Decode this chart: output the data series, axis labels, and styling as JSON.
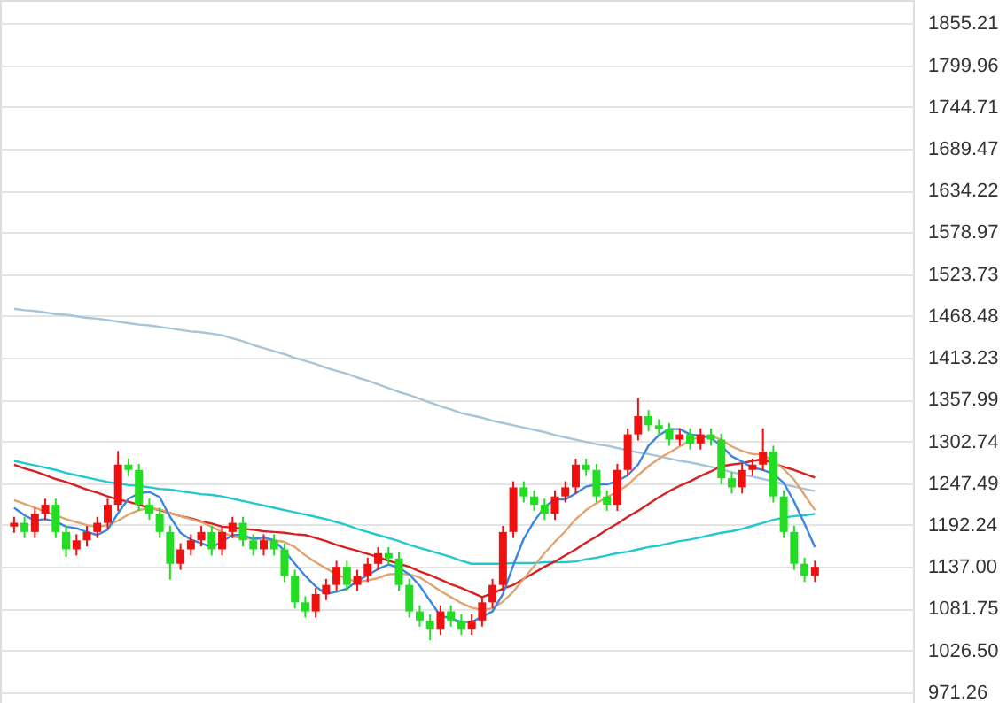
{
  "chart_data": {
    "type": "candlestick",
    "categories": [
      null,
      null,
      null,
      null,
      null,
      null,
      null,
      null,
      null,
      null,
      null,
      null,
      null,
      null,
      null,
      null,
      null,
      null,
      null,
      null,
      null,
      null,
      null,
      null,
      null,
      null,
      null,
      null,
      null,
      null,
      null,
      null,
      null,
      null,
      null,
      null,
      null,
      null,
      null,
      null,
      null,
      null,
      null,
      null,
      null,
      null,
      null,
      null,
      null,
      null,
      null,
      null,
      null,
      null,
      null,
      null,
      null,
      null,
      null,
      null,
      null,
      null,
      null,
      null,
      null,
      null,
      null,
      null,
      null,
      null,
      null,
      null,
      null,
      null,
      null,
      null,
      null,
      null
    ],
    "ohlc": [
      [
        1190,
        1203,
        1182,
        1195
      ],
      [
        1195,
        1203,
        1175,
        1183
      ],
      [
        1183,
        1215,
        1175,
        1207
      ],
      [
        1207,
        1227,
        1199,
        1219
      ],
      [
        1219,
        1227,
        1175,
        1183
      ],
      [
        1183,
        1191,
        1150,
        1160
      ],
      [
        1160,
        1180,
        1152,
        1172
      ],
      [
        1172,
        1191,
        1164,
        1183
      ],
      [
        1183,
        1203,
        1175,
        1195
      ],
      [
        1195,
        1227,
        1187,
        1219
      ],
      [
        1219,
        1290,
        1211,
        1272
      ],
      [
        1272,
        1280,
        1257,
        1265
      ],
      [
        1265,
        1273,
        1211,
        1219
      ],
      [
        1219,
        1227,
        1199,
        1207
      ],
      [
        1207,
        1215,
        1175,
        1183
      ],
      [
        1183,
        1191,
        1120,
        1141
      ],
      [
        1141,
        1168,
        1133,
        1160
      ],
      [
        1160,
        1180,
        1152,
        1172
      ],
      [
        1172,
        1191,
        1164,
        1183
      ],
      [
        1183,
        1191,
        1152,
        1160
      ],
      [
        1160,
        1191,
        1152,
        1183
      ],
      [
        1183,
        1203,
        1175,
        1195
      ],
      [
        1195,
        1203,
        1164,
        1172
      ],
      [
        1172,
        1180,
        1152,
        1160
      ],
      [
        1160,
        1180,
        1152,
        1172
      ],
      [
        1172,
        1180,
        1152,
        1160
      ],
      [
        1160,
        1168,
        1117,
        1125
      ],
      [
        1125,
        1133,
        1082,
        1090
      ],
      [
        1090,
        1098,
        1070,
        1078
      ],
      [
        1078,
        1109,
        1070,
        1101
      ],
      [
        1101,
        1121,
        1093,
        1113
      ],
      [
        1113,
        1145,
        1105,
        1137
      ],
      [
        1137,
        1145,
        1105,
        1113
      ],
      [
        1113,
        1133,
        1105,
        1125
      ],
      [
        1125,
        1149,
        1117,
        1141
      ],
      [
        1141,
        1163,
        1133,
        1155
      ],
      [
        1155,
        1163,
        1140,
        1148
      ],
      [
        1148,
        1156,
        1105,
        1113
      ],
      [
        1113,
        1121,
        1070,
        1078
      ],
      [
        1078,
        1086,
        1058,
        1066
      ],
      [
        1066,
        1074,
        1040,
        1055
      ],
      [
        1055,
        1086,
        1047,
        1078
      ],
      [
        1078,
        1086,
        1058,
        1066
      ],
      [
        1066,
        1074,
        1047,
        1055
      ],
      [
        1055,
        1074,
        1047,
        1066
      ],
      [
        1066,
        1098,
        1058,
        1090
      ],
      [
        1090,
        1121,
        1082,
        1113
      ],
      [
        1113,
        1191,
        1105,
        1183
      ],
      [
        1183,
        1250,
        1175,
        1242
      ],
      [
        1242,
        1250,
        1222,
        1230
      ],
      [
        1230,
        1238,
        1211,
        1219
      ],
      [
        1219,
        1227,
        1199,
        1207
      ],
      [
        1207,
        1238,
        1199,
        1230
      ],
      [
        1230,
        1250,
        1222,
        1242
      ],
      [
        1242,
        1280,
        1234,
        1272
      ],
      [
        1272,
        1280,
        1257,
        1265
      ],
      [
        1265,
        1273,
        1222,
        1230
      ],
      [
        1230,
        1238,
        1211,
        1219
      ],
      [
        1219,
        1273,
        1211,
        1265
      ],
      [
        1265,
        1320,
        1257,
        1312
      ],
      [
        1312,
        1360,
        1304,
        1336
      ],
      [
        1336,
        1344,
        1316,
        1324
      ],
      [
        1324,
        1332,
        1311,
        1319
      ],
      [
        1319,
        1327,
        1297,
        1305
      ],
      [
        1305,
        1320,
        1297,
        1312
      ],
      [
        1312,
        1320,
        1292,
        1300
      ],
      [
        1300,
        1320,
        1292,
        1312
      ],
      [
        1312,
        1320,
        1297,
        1305
      ],
      [
        1305,
        1313,
        1246,
        1254
      ],
      [
        1254,
        1262,
        1234,
        1242
      ],
      [
        1242,
        1273,
        1234,
        1265
      ],
      [
        1265,
        1280,
        1257,
        1272
      ],
      [
        1272,
        1320,
        1264,
        1289
      ],
      [
        1289,
        1297,
        1222,
        1230
      ],
      [
        1230,
        1238,
        1175,
        1183
      ],
      [
        1183,
        1191,
        1133,
        1141
      ],
      [
        1141,
        1149,
        1117,
        1125
      ],
      [
        1125,
        1145,
        1117,
        1137
      ]
    ],
    "colors": [
      "#f01010",
      "#22dd22",
      "#f01010",
      "#f01010",
      "#22dd22",
      "#22dd22",
      "#f01010",
      "#f01010",
      "#f01010",
      "#f01010",
      "#f01010",
      "#22dd22",
      "#22dd22",
      "#22dd22",
      "#22dd22",
      "#22dd22",
      "#f01010",
      "#f01010",
      "#f01010",
      "#22dd22",
      "#f01010",
      "#f01010",
      "#22dd22",
      "#22dd22",
      "#f01010",
      "#22dd22",
      "#22dd22",
      "#22dd22",
      "#22dd22",
      "#f01010",
      "#f01010",
      "#f01010",
      "#22dd22",
      "#f01010",
      "#f01010",
      "#f01010",
      "#22dd22",
      "#22dd22",
      "#22dd22",
      "#22dd22",
      "#22dd22",
      "#f01010",
      "#22dd22",
      "#22dd22",
      "#f01010",
      "#f01010",
      "#f01010",
      "#f01010",
      "#f01010",
      "#22dd22",
      "#22dd22",
      "#22dd22",
      "#f01010",
      "#f01010",
      "#f01010",
      "#22dd22",
      "#22dd22",
      "#22dd22",
      "#f01010",
      "#f01010",
      "#f01010",
      "#22dd22",
      "#22dd22",
      "#22dd22",
      "#f01010",
      "#22dd22",
      "#f01010",
      "#22dd22",
      "#22dd22",
      "#22dd22",
      "#f01010",
      "#f01010",
      "#f01010",
      "#22dd22",
      "#22dd22",
      "#22dd22",
      "#22dd22",
      "#f01010"
    ],
    "series": [
      {
        "type": "line",
        "color": "#a8c4d8",
        "values": [
          1478,
          1476,
          1475,
          1473,
          1471,
          1470,
          1468,
          1466,
          1465,
          1463,
          1461,
          1459,
          1457,
          1456,
          1454,
          1452,
          1450,
          1448,
          1447,
          1445,
          1443,
          1439,
          1435,
          1430,
          1426,
          1422,
          1418,
          1413,
          1409,
          1405,
          1400,
          1396,
          1392,
          1387,
          1383,
          1378,
          1373,
          1368,
          1364,
          1359,
          1354,
          1349,
          1345,
          1340,
          1337,
          1334,
          1330,
          1327,
          1324,
          1321,
          1318,
          1315,
          1311,
          1308,
          1305,
          1302,
          1299,
          1297,
          1294,
          1291,
          1288,
          1286,
          1283,
          1280,
          1277,
          1275,
          1272,
          1269,
          1266,
          1262,
          1259,
          1256,
          1253,
          1250,
          1246,
          1243,
          1240,
          1237
        ]
      },
      {
        "type": "line",
        "color": "#20c8d0",
        "values": [
          1277,
          1274,
          1271,
          1268,
          1265,
          1261,
          1258,
          1255,
          1252,
          1249,
          1247,
          1245,
          1244,
          1242,
          1240,
          1239,
          1237,
          1235,
          1233,
          1232,
          1230,
          1227,
          1224,
          1221,
          1218,
          1215,
          1212,
          1209,
          1206,
          1203,
          1200,
          1196,
          1192,
          1187,
          1183,
          1179,
          1175,
          1171,
          1166,
          1162,
          1158,
          1154,
          1150,
          1145,
          1141,
          1141,
          1141,
          1141,
          1142,
          1142,
          1142,
          1143,
          1143,
          1143,
          1144,
          1147,
          1149,
          1152,
          1155,
          1157,
          1160,
          1163,
          1165,
          1168,
          1171,
          1173,
          1176,
          1179,
          1182,
          1184,
          1187,
          1191,
          1195,
          1199,
          1202,
          1204,
          1205,
          1207
        ]
      },
      {
        "type": "line",
        "color": "#d82020",
        "values": [
          1272,
          1267,
          1263,
          1258,
          1253,
          1249,
          1244,
          1239,
          1235,
          1230,
          1226,
          1223,
          1219,
          1215,
          1212,
          1208,
          1204,
          1201,
          1197,
          1194,
          1190,
          1189,
          1187,
          1186,
          1184,
          1183,
          1182,
          1180,
          1179,
          1175,
          1171,
          1166,
          1162,
          1158,
          1154,
          1150,
          1145,
          1141,
          1137,
          1131,
          1126,
          1120,
          1114,
          1109,
          1103,
          1097,
          1102,
          1108,
          1113,
          1121,
          1129,
          1137,
          1144,
          1152,
          1160,
          1169,
          1177,
          1186,
          1194,
          1203,
          1211,
          1220,
          1229,
          1237,
          1244,
          1250,
          1257,
          1263,
          1270,
          1272,
          1274,
          1277,
          1279,
          1274,
          1269,
          1265,
          1260,
          1255
        ]
      },
      {
        "type": "line",
        "color": "#e0a470",
        "values": [
          1225,
          1220,
          1215,
          1210,
          1205,
          1200,
          1196,
          1192,
          1190,
          1192,
          1198,
          1206,
          1212,
          1214,
          1213,
          1208,
          1204,
          1200,
          1196,
          1190,
          1183,
          1177,
          1175,
          1174,
          1173,
          1172,
          1170,
          1163,
          1152,
          1143,
          1135,
          1127,
          1121,
          1117,
          1119,
          1122,
          1127,
          1128,
          1127,
          1123,
          1114,
          1105,
          1097,
          1089,
          1083,
          1080,
          1082,
          1091,
          1104,
          1121,
          1138,
          1155,
          1170,
          1184,
          1200,
          1212,
          1221,
          1229,
          1236,
          1245,
          1258,
          1270,
          1280,
          1288,
          1296,
          1304,
          1309,
          1310,
          1305,
          1296,
          1290,
          1286,
          1285,
          1277,
          1266,
          1252,
          1232,
          1212
        ]
      },
      {
        "type": "line",
        "color": "#3a86e0",
        "values": [
          1215,
          1205,
          1198,
          1200,
          1197,
          1190,
          1188,
          1183,
          1179,
          1186,
          1208,
          1227,
          1234,
          1236,
          1229,
          1203,
          1182,
          1173,
          1168,
          1163,
          1170,
          1179,
          1179,
          1174,
          1176,
          1172,
          1158,
          1141,
          1125,
          1111,
          1101,
          1104,
          1108,
          1118,
          1126,
          1134,
          1140,
          1136,
          1127,
          1112,
          1092,
          1072,
          1069,
          1064,
          1064,
          1071,
          1078,
          1101,
          1139,
          1174,
          1197,
          1216,
          1226,
          1226,
          1234,
          1243,
          1246,
          1246,
          1250,
          1258,
          1272,
          1297,
          1311,
          1319,
          1319,
          1312,
          1310,
          1307,
          1297,
          1283,
          1276,
          1268,
          1265,
          1260,
          1248,
          1223,
          1194,
          1163
        ]
      }
    ],
    "ylim": [
      957,
      1886
    ],
    "yticks": [
      1855.21,
      1799.96,
      1744.71,
      1689.47,
      1634.22,
      1578.97,
      1523.73,
      1468.48,
      1413.23,
      1357.99,
      1302.74,
      1247.49,
      1192.24,
      {
        "value": 1137,
        "label": "1137.00"
      },
      1081.75,
      {
        "value": 1026.5,
        "label": "1026.50"
      },
      971.26
    ],
    "grid": "y",
    "tick_labels": "y"
  }
}
